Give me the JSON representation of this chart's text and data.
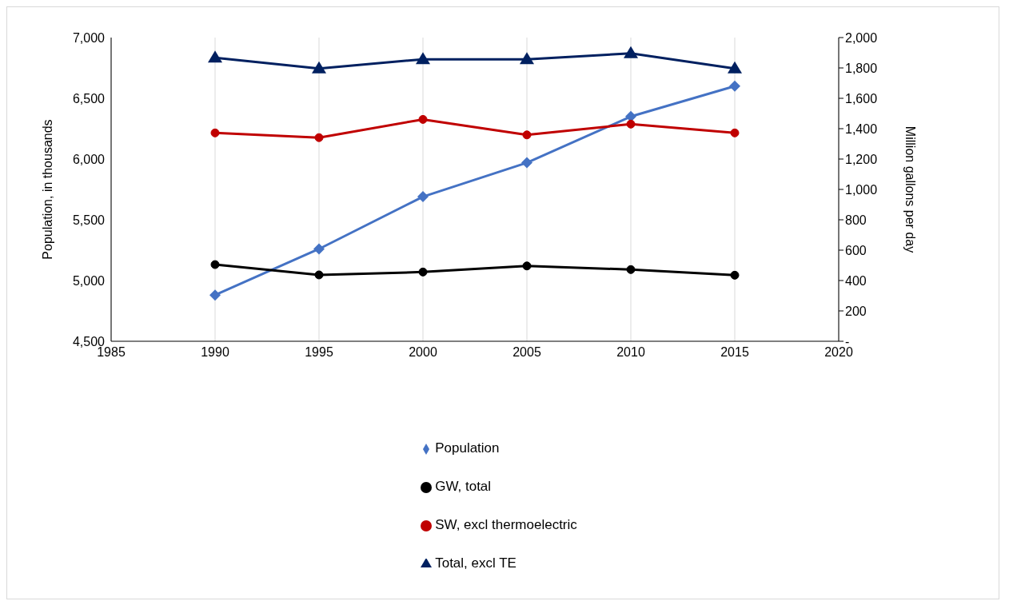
{
  "chart_data": {
    "type": "line",
    "x": [
      1990,
      1995,
      2000,
      2005,
      2010,
      2015
    ],
    "xlim": [
      1985,
      2020
    ],
    "xticks": [
      1985,
      1990,
      1995,
      2000,
      2005,
      2010,
      2015,
      2020
    ],
    "ylim": [
      4500,
      7000
    ],
    "yticks": [
      {
        "value": 4500,
        "label": "4,500"
      },
      {
        "value": 5000,
        "label": "5,000"
      },
      {
        "value": 5500,
        "label": "5,500"
      },
      {
        "value": 6000,
        "label": "6,000"
      },
      {
        "value": 6500,
        "label": "6,500"
      },
      {
        "value": 7000,
        "label": "7,000"
      }
    ],
    "y2lim": [
      0,
      2000
    ],
    "y2ticks": [
      {
        "value": 0,
        "label": "-"
      },
      {
        "value": 200,
        "label": "200"
      },
      {
        "value": 400,
        "label": "400"
      },
      {
        "value": 600,
        "label": "600"
      },
      {
        "value": 800,
        "label": "800"
      },
      {
        "value": 1000,
        "label": "1,000"
      },
      {
        "value": 1200,
        "label": "1,200"
      },
      {
        "value": 1400,
        "label": "1,400"
      },
      {
        "value": 1600,
        "label": "1,600"
      },
      {
        "value": 1800,
        "label": "1,800"
      },
      {
        "value": 2000,
        "label": "2,000"
      }
    ],
    "ylabel": "Population, in thousands",
    "y2label": "Million gallons per day",
    "grid": "x",
    "legend": "bottom",
    "series": [
      {
        "name": "Population",
        "color": "#4472c4",
        "marker": "diamond",
        "values": [
          4880,
          5260,
          5690,
          5970,
          6350,
          6600
        ]
      },
      {
        "name": "GW, total",
        "color": "#000000",
        "marker": "circle",
        "axis": "y2",
        "values": [
          505,
          437,
          456,
          496,
          472,
          435
        ]
      },
      {
        "name": "SW, excl thermoelectric",
        "color": "#c00000",
        "marker": "circle",
        "axis": "y2",
        "values": [
          1372,
          1341,
          1461,
          1359,
          1430,
          1372
        ]
      },
      {
        "name": "Total, excl TE",
        "color": "#002060",
        "marker": "triangle",
        "axis": "y2",
        "values": [
          1867,
          1796,
          1857,
          1857,
          1896,
          1796
        ]
      }
    ]
  }
}
